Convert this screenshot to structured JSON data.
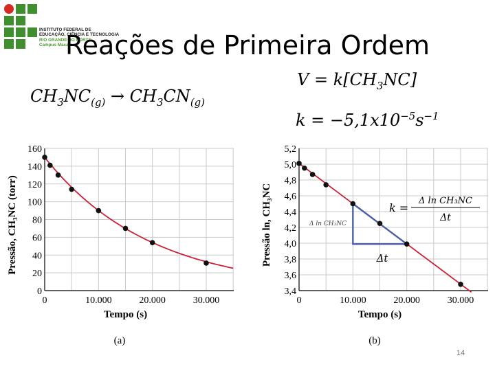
{
  "logo": {
    "lines": [
      "INSTITUTO FEDERAL DE",
      "EDUCAÇÃO, CIÊNCIA E TECNOLOGIA",
      "RIO GRANDE DO NORTE",
      "Campus Macau"
    ],
    "green": "#3f8f2e",
    "red": "#d42a1f"
  },
  "slide": {
    "title": "Reações de Primeira Ordem",
    "page_number": "14"
  },
  "equations": {
    "reaction": {
      "reactant": "CH",
      "reactant_sub": "3",
      "reactant_rest": "NC",
      "phase": "(g)",
      "arrow": "→",
      "product": "CH",
      "product_sub": "3",
      "product_rest": "CN",
      "product_phase": "(g)"
    },
    "rate_law": {
      "lhs": "V = k[CH",
      "sub": "3",
      "rhs": "NC]"
    },
    "k_value": {
      "lhs": "k = −5,1x10",
      "exp": "−5",
      "unit": "s",
      "unit_exp": "−1"
    }
  },
  "colors": {
    "curve": "#cc1f35",
    "points": "#111111",
    "triangle": "#4a5fa6",
    "grid": "#c9c9c9"
  },
  "chart_data": [
    {
      "type": "line",
      "panel_label": "(a)",
      "xlabel": "Tempo (s)",
      "ylabel": "Pressão, CH₃NC (torr)",
      "x_tick_labels": [
        "0",
        "10.000",
        "20.000",
        "30.000"
      ],
      "x_ticks": [
        0,
        10000,
        20000,
        30000
      ],
      "y_tick_labels": [
        "0",
        "20",
        "40",
        "60",
        "80",
        "100",
        "120",
        "140",
        "160"
      ],
      "y_ticks": [
        0,
        20,
        40,
        60,
        80,
        100,
        120,
        140,
        160
      ],
      "xlim": [
        0,
        35000
      ],
      "ylim": [
        0,
        160
      ],
      "grid": true,
      "points": {
        "x": [
          0,
          1000,
          2500,
          5000,
          10000,
          15000,
          20000,
          30000
        ],
        "y": [
          150,
          141,
          130,
          114,
          90,
          70,
          54,
          31
        ]
      },
      "fit_k": 5.1e-05,
      "fit_p0": 150
    },
    {
      "type": "line",
      "panel_label": "(b)",
      "xlabel": "Tempo (s)",
      "ylabel": "Pressão ln, CH₃NC",
      "x_tick_labels": [
        "0",
        "10.000",
        "20.000",
        "30.000"
      ],
      "x_ticks": [
        0,
        10000,
        20000,
        30000
      ],
      "y_tick_labels": [
        "3,4",
        "3,6",
        "3,8",
        "4,0",
        "4,2",
        "4,4",
        "4,6",
        "4,8",
        "5,0",
        "5,2"
      ],
      "y_ticks": [
        3.4,
        3.6,
        3.8,
        4.0,
        4.2,
        4.4,
        4.6,
        4.8,
        5.0,
        5.2
      ],
      "xlim": [
        0,
        35000
      ],
      "ylim": [
        3.4,
        5.2
      ],
      "grid": true,
      "points": {
        "x": [
          0,
          1000,
          2500,
          5000,
          10000,
          15000,
          20000,
          30000
        ],
        "y": [
          5.01,
          4.95,
          4.87,
          4.74,
          4.5,
          4.25,
          3.99,
          3.48
        ]
      },
      "line": {
        "x": [
          0,
          32000
        ],
        "y": [
          5.01,
          3.38
        ]
      },
      "annotations": {
        "slope_label": "Δ ln CH₃NC",
        "dt_label": "Δt",
        "k_formula": {
          "lhs": "k =",
          "numerator": "Δ ln CH₃NC",
          "denominator": "Δt"
        },
        "triangle": {
          "x0": 10000,
          "x1": 20000,
          "y_top": 4.5,
          "y_bottom": 3.99
        }
      }
    }
  ]
}
